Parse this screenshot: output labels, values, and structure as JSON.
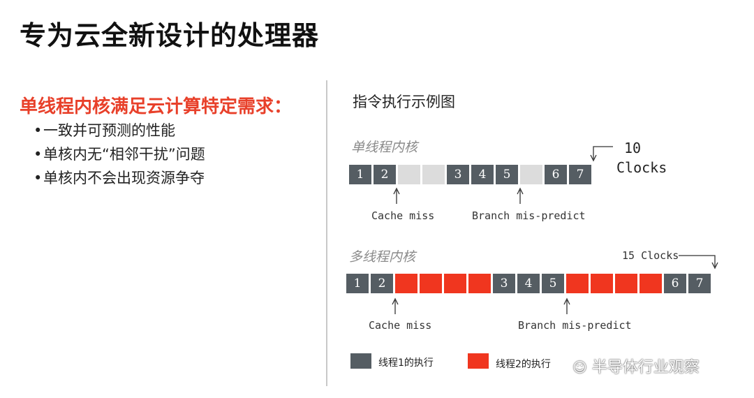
{
  "title": "专为云全新设计的处理器",
  "left": {
    "heading": "单线程内核满足云计算特定需求：",
    "bullets": [
      "一致并可预测的性能",
      "单核内无“相邻干扰”问题",
      "单核内不会出现资源争夺"
    ]
  },
  "figure": {
    "title": "指令执行示例图",
    "single": {
      "label": "单线程内核",
      "cells": [
        {
          "t": "exec",
          "text": "1"
        },
        {
          "t": "exec",
          "text": "2"
        },
        {
          "t": "stall",
          "text": ""
        },
        {
          "t": "stall",
          "text": ""
        },
        {
          "t": "exec",
          "text": "3"
        },
        {
          "t": "exec",
          "text": "4"
        },
        {
          "t": "exec",
          "text": "5"
        },
        {
          "t": "stall",
          "text": ""
        },
        {
          "t": "exec",
          "text": "6"
        },
        {
          "t": "exec",
          "text": "7"
        }
      ],
      "clocks_value": "10",
      "clocks_unit": "Clocks",
      "note_cache": "Cache miss",
      "note_branch": "Branch mis-predict"
    },
    "multi": {
      "label": "多线程内核",
      "cells": [
        {
          "t": "exec",
          "text": "1"
        },
        {
          "t": "exec",
          "text": "2"
        },
        {
          "t": "thread2",
          "text": ""
        },
        {
          "t": "thread2",
          "text": ""
        },
        {
          "t": "thread2",
          "text": ""
        },
        {
          "t": "thread2",
          "text": ""
        },
        {
          "t": "exec",
          "text": "3"
        },
        {
          "t": "exec",
          "text": "4"
        },
        {
          "t": "exec",
          "text": "5"
        },
        {
          "t": "thread2",
          "text": ""
        },
        {
          "t": "thread2",
          "text": ""
        },
        {
          "t": "thread2",
          "text": ""
        },
        {
          "t": "thread2",
          "text": ""
        },
        {
          "t": "exec",
          "text": "6"
        },
        {
          "t": "exec",
          "text": "7"
        }
      ],
      "clocks": "15 Clocks",
      "note_cache": "Cache miss",
      "note_branch": "Branch mis-predict"
    },
    "legend": {
      "thread1": "线程1的执行",
      "thread2": "线程2的执行",
      "thread1_color": "#555d63",
      "thread2_color": "#f0361f"
    }
  },
  "watermark": "半导体行业观察",
  "colors": {
    "accent": "#e8402a",
    "stall": "#dcdcdc"
  }
}
